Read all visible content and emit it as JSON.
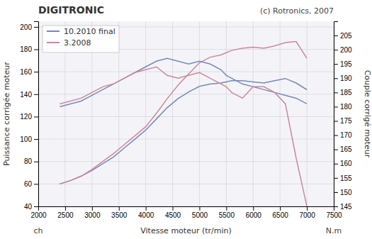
{
  "chart_data": {
    "type": "line",
    "title": "DIGITRONIC",
    "annotations": [
      "(c) Rotronics, 2007",
      "ch",
      "N.m"
    ],
    "x_label": "Vitesse moteur (tr/min)",
    "y_label": "Puissance corrigée moteur",
    "y2_label": "Couple corrigé moteur",
    "x": [
      2400,
      2600,
      2800,
      3000,
      3200,
      3400,
      3600,
      3800,
      4000,
      4200,
      4400,
      4600,
      4800,
      5000,
      5200,
      5400,
      5500,
      5600,
      5800,
      6000,
      6200,
      6400,
      6600,
      6800,
      7000
    ],
    "series": [
      {
        "name": "10.2010 final",
        "color": "#7788bb",
        "values": [
          60,
          63,
          67,
          72,
          78,
          84,
          92,
          100,
          108,
          118,
          128,
          136,
          142,
          147,
          149,
          150,
          151,
          152,
          152,
          151,
          150,
          152,
          154,
          150,
          144
        ]
      },
      {
        "name": "3.2008",
        "color": "#cc8899",
        "values": [
          60,
          63,
          67,
          73,
          80,
          87,
          95,
          103,
          111,
          123,
          136,
          148,
          158,
          168,
          173,
          175,
          177,
          179,
          181,
          182,
          181,
          183,
          186,
          187,
          172
        ]
      },
      {
        "name": "10.2010 final",
        "color": "#7788bb",
        "axis": "y2",
        "values": [
          180,
          181,
          182,
          184,
          186,
          188,
          190,
          192,
          194,
          196,
          197,
          196,
          195,
          196,
          195,
          193,
          191,
          190,
          188,
          187,
          186,
          185,
          184,
          183,
          181
        ]
      },
      {
        "name": "3.2008",
        "color": "#cc8899",
        "axis": "y2",
        "values": [
          181,
          182,
          183,
          185,
          187,
          188,
          190,
          192,
          193,
          194,
          191,
          190,
          191,
          192,
          190,
          188,
          187,
          185,
          183,
          187,
          187,
          185,
          181,
          162,
          145
        ]
      }
    ],
    "xlim": [
      2000,
      7500
    ],
    "xticks": [
      2000,
      2500,
      3000,
      3500,
      4000,
      4500,
      5000,
      5500,
      6000,
      6500,
      7000,
      7500
    ],
    "ylim": [
      40,
      205
    ],
    "yticks": [
      40,
      60,
      80,
      100,
      120,
      140,
      160,
      180,
      200
    ],
    "y2lim": [
      145,
      210
    ],
    "y2ticks": [
      145,
      150,
      155,
      160,
      165,
      170,
      175,
      180,
      185,
      190,
      195,
      200,
      205
    ],
    "grid": true,
    "legend": "top-left"
  }
}
